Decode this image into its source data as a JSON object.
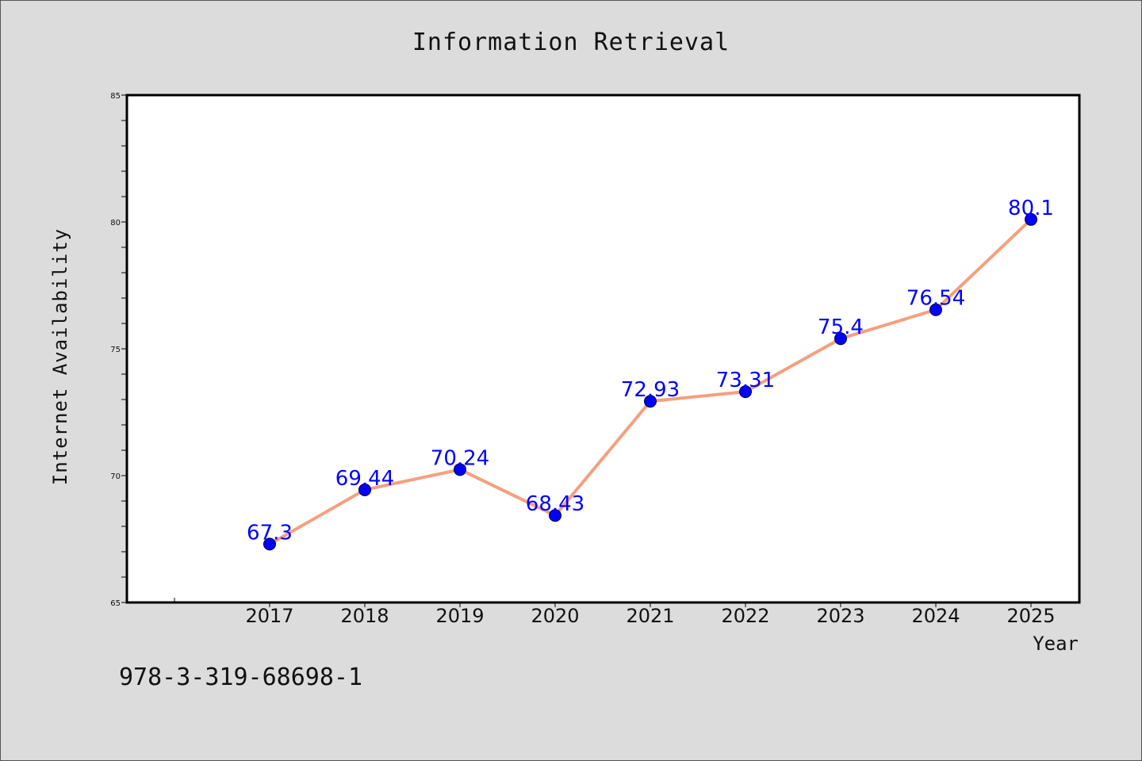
{
  "chart_data": {
    "type": "line",
    "title": "Information Retrieval",
    "xlabel": "Year",
    "ylabel": "Internet Availability",
    "x": [
      "2017",
      "2018",
      "2019",
      "2020",
      "2021",
      "2022",
      "2023",
      "2024",
      "2025"
    ],
    "series": [
      {
        "values": [
          67.3,
          69.44,
          70.24,
          68.43,
          72.93,
          73.31,
          75.4,
          76.54,
          80.1
        ],
        "labels": [
          "67.3",
          "69.44",
          "70.24",
          "68.43",
          "72.93",
          "73.31",
          "75.4",
          "76.54",
          "80.1"
        ],
        "line_color": "#f4a07f",
        "marker_color": "#0000ff"
      }
    ],
    "ylim": [
      65,
      85
    ],
    "yticks": [
      "65",
      "70",
      "75",
      "80",
      "85"
    ],
    "grid": false,
    "legend": "none"
  },
  "footer": {
    "isbn": "978-3-319-68698-1"
  }
}
